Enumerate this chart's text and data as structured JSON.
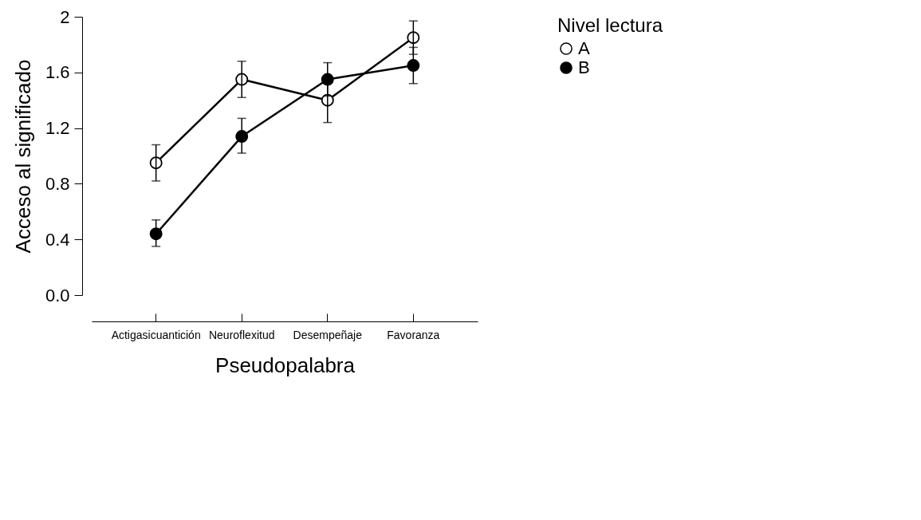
{
  "chart_data": {
    "type": "line",
    "xlabel": "Pseudopalabra",
    "ylabel": "Acceso al significado",
    "legend_title": "Nivel lectura",
    "legend": "top right",
    "marker": "circle",
    "line_style": "solid",
    "grid": false,
    "categories": [
      "Actigasicuantición",
      "Neuroflexitud",
      "Desempeñaje",
      "Favoranza"
    ],
    "ylim": [
      0,
      2
    ],
    "yticks": [
      {
        "value": 0,
        "label": "0.0"
      },
      0.4,
      0.8,
      1.2,
      1.6,
      2
    ],
    "series": [
      {
        "name": "A",
        "color": "#ffffff",
        "values": [
          0.95,
          1.55,
          1.4,
          1.85
        ],
        "errors": [
          [
            0.82,
            1.08
          ],
          [
            1.42,
            1.68
          ],
          [
            1.24,
            1.53
          ],
          [
            1.73,
            1.97
          ]
        ]
      },
      {
        "name": "B",
        "color": "#000000",
        "values": [
          0.44,
          1.14,
          1.55,
          1.65
        ],
        "errors": [
          [
            0.35,
            0.54
          ],
          [
            1.02,
            1.27
          ],
          [
            1.43,
            1.67
          ],
          [
            1.52,
            1.78
          ]
        ]
      }
    ]
  }
}
